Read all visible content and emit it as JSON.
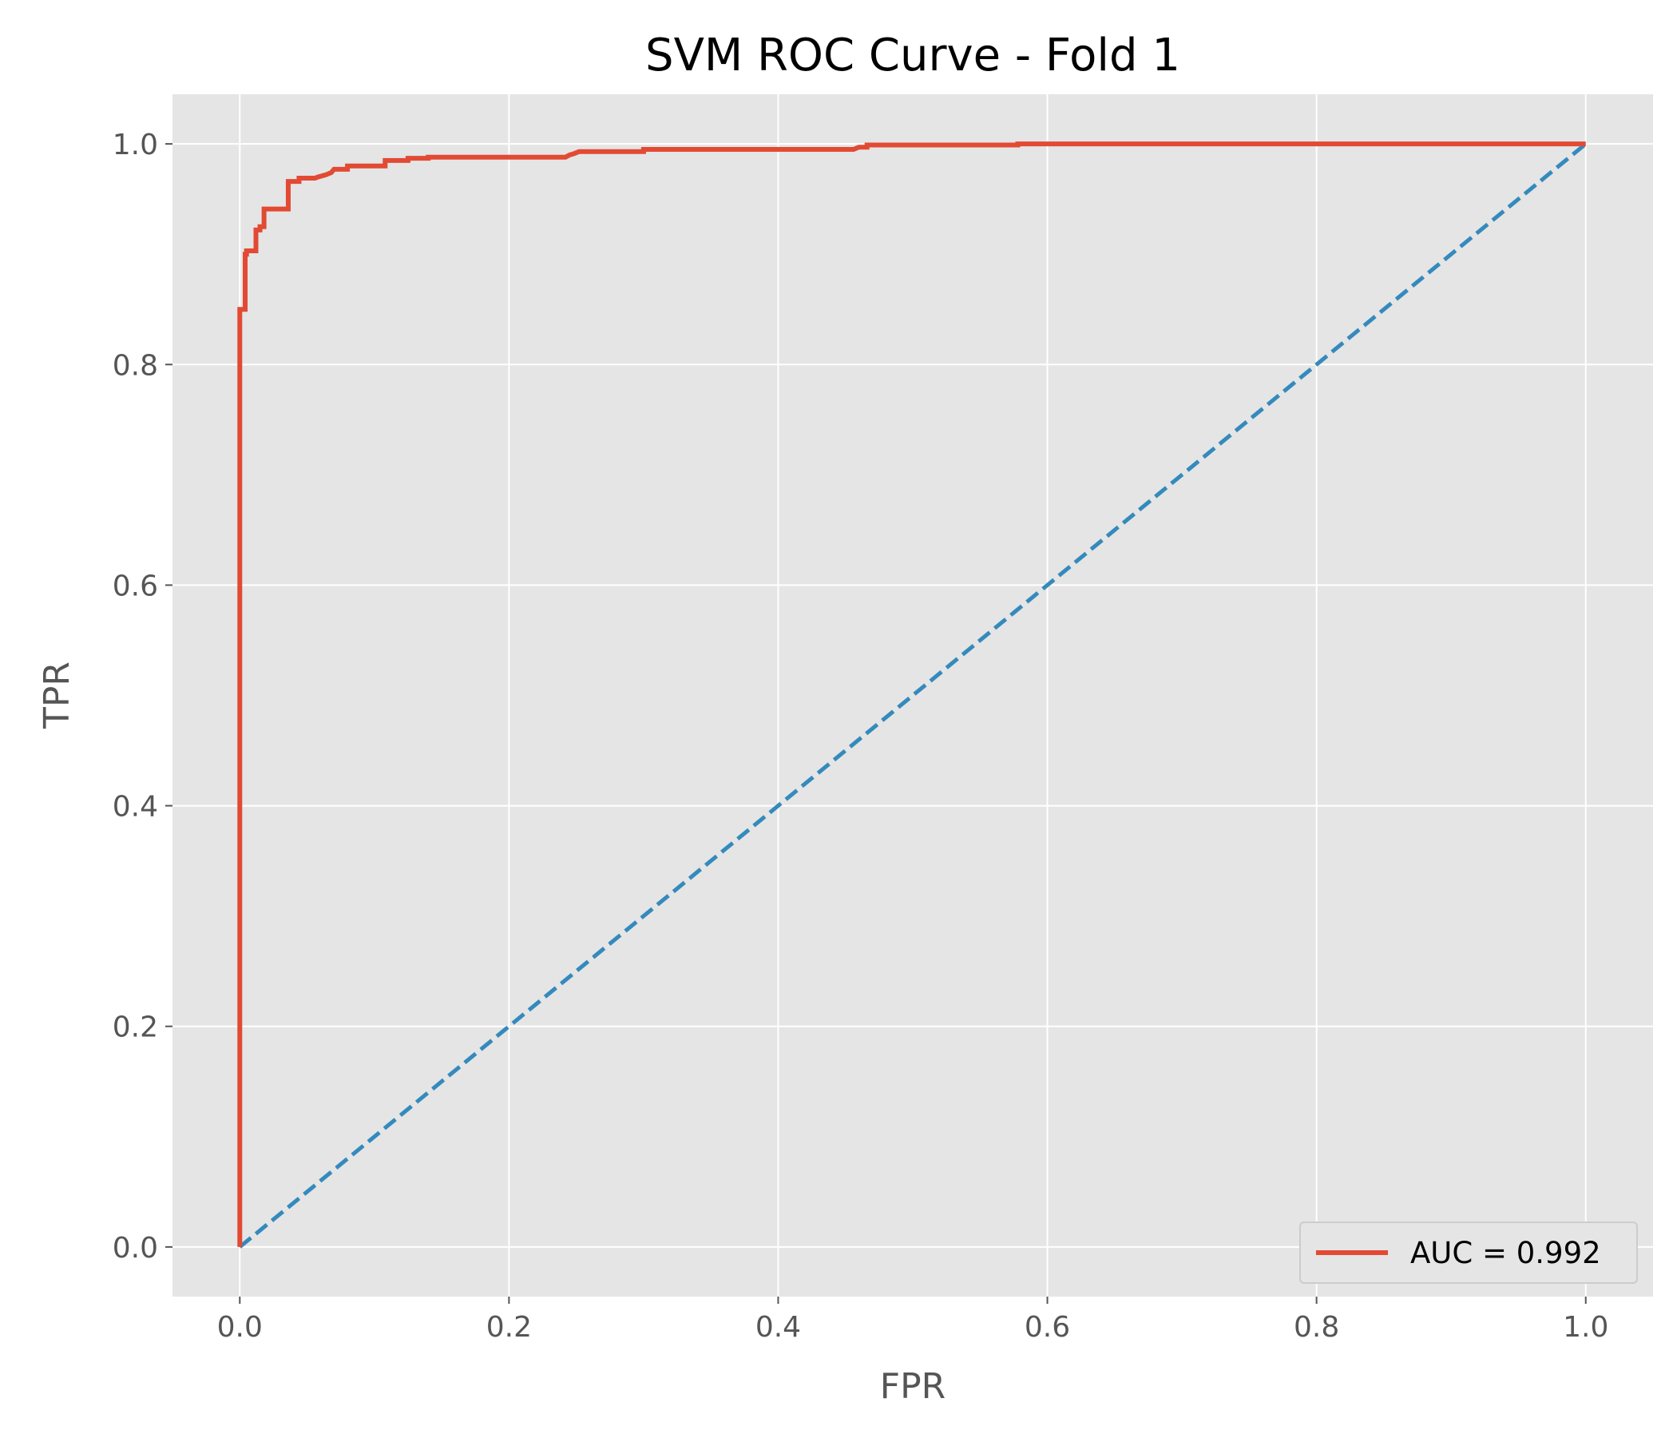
{
  "chart_data": {
    "type": "line",
    "title": "SVM ROC Curve - Fold 1",
    "xlabel": "FPR",
    "ylabel": "TPR",
    "xlim": [
      -0.05,
      1.05
    ],
    "ylim": [
      -0.045,
      1.045
    ],
    "xticks": [
      "0.0",
      "0.2",
      "0.4",
      "0.6",
      "0.8",
      "1.0"
    ],
    "yticks": [
      "0.0",
      "0.2",
      "0.4",
      "0.6",
      "0.8",
      "1.0"
    ],
    "grid": true,
    "legend_position": "lower-right",
    "series": [
      {
        "name": "AUC = 0.992",
        "color": "#E24A33",
        "style": "solid",
        "x": [
          0.0,
          0.0,
          0.004,
          0.004,
          0.005,
          0.005,
          0.012,
          0.012,
          0.015,
          0.015,
          0.018,
          0.018,
          0.036,
          0.036,
          0.044,
          0.044,
          0.056,
          0.058,
          0.061,
          0.064,
          0.066,
          0.068,
          0.07,
          0.075,
          0.08,
          0.08,
          0.108,
          0.108,
          0.125,
          0.125,
          0.14,
          0.14,
          0.242,
          0.245,
          0.248,
          0.25,
          0.252,
          0.255,
          0.3,
          0.3,
          0.456,
          0.46,
          0.466,
          0.466,
          0.578,
          0.578,
          1.0
        ],
        "y": [
          0.0,
          0.85,
          0.85,
          0.9,
          0.9,
          0.903,
          0.903,
          0.922,
          0.922,
          0.925,
          0.925,
          0.941,
          0.941,
          0.966,
          0.966,
          0.969,
          0.969,
          0.97,
          0.971,
          0.972,
          0.973,
          0.974,
          0.977,
          0.977,
          0.977,
          0.98,
          0.98,
          0.985,
          0.985,
          0.987,
          0.987,
          0.988,
          0.988,
          0.99,
          0.991,
          0.992,
          0.993,
          0.993,
          0.993,
          0.995,
          0.995,
          0.997,
          0.997,
          0.999,
          0.999,
          1.0,
          1.0
        ]
      },
      {
        "name": "",
        "color": "#348ABD",
        "style": "dashed",
        "x": [
          0.0,
          1.0
        ],
        "y": [
          0.0,
          1.0
        ]
      }
    ]
  }
}
